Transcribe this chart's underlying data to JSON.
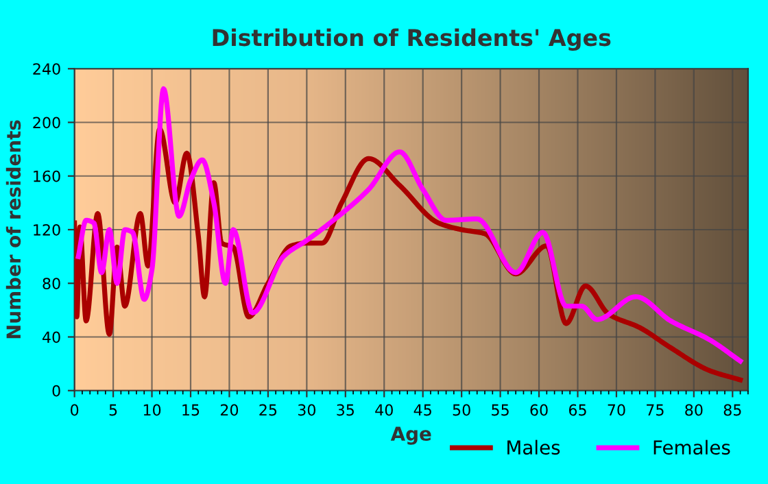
{
  "chart_data": {
    "type": "line",
    "title": "Distribution of Residents' Ages",
    "xlabel": "Age",
    "ylabel": "Number of residents",
    "xlim": [
      0,
      87
    ],
    "xticks": [
      0,
      5,
      10,
      15,
      20,
      25,
      30,
      35,
      40,
      45,
      50,
      55,
      60,
      65,
      70,
      75,
      80,
      85
    ],
    "ylim": [
      0,
      240
    ],
    "yticks": [
      0,
      40,
      80,
      120,
      160,
      200,
      240
    ],
    "grid": true,
    "legend": "bottom right",
    "marker": "none",
    "line_style": "solid",
    "series": [
      {
        "name": "Males",
        "color": "#aa0000",
        "x": [
          0,
          0.3,
          0.7,
          1.5,
          3,
          4.5,
          5.5,
          6.5,
          8.5,
          9.5,
          11,
          13,
          14.5,
          16,
          16.8,
          18,
          19,
          20.5,
          22.5,
          25,
          28,
          30,
          32,
          34.5,
          38,
          42,
          47,
          50,
          53,
          57,
          61,
          63.5,
          66,
          69,
          73,
          77,
          82,
          86
        ],
        "values": [
          125,
          55,
          122,
          52,
          132,
          42,
          107,
          63,
          132,
          93,
          195,
          140,
          177,
          115,
          70,
          155,
          110,
          107,
          55,
          80,
          108,
          110,
          110,
          140,
          173,
          153,
          125,
          120,
          117,
          87,
          108,
          50,
          78,
          57,
          47,
          32,
          15,
          8
        ]
      },
      {
        "name": "Females",
        "color": "#ff00ff",
        "x": [
          0.5,
          1.5,
          2.5,
          3.5,
          4.5,
          5.5,
          6.5,
          7.5,
          9,
          10,
          11.5,
          13.5,
          15,
          16.5,
          18,
          19.5,
          20.5,
          23,
          27,
          30,
          33,
          38,
          42,
          45,
          48,
          52,
          57,
          60.5,
          63.5,
          65.5,
          67.5,
          72.5,
          77,
          82,
          86
        ],
        "values": [
          100,
          127,
          125,
          88,
          120,
          80,
          120,
          118,
          68,
          90,
          225,
          130,
          157,
          172,
          140,
          80,
          120,
          58,
          100,
          112,
          125,
          150,
          178,
          150,
          127,
          128,
          88,
          118,
          63,
          63,
          53,
          70,
          52,
          38,
          22
        ]
      }
    ]
  }
}
